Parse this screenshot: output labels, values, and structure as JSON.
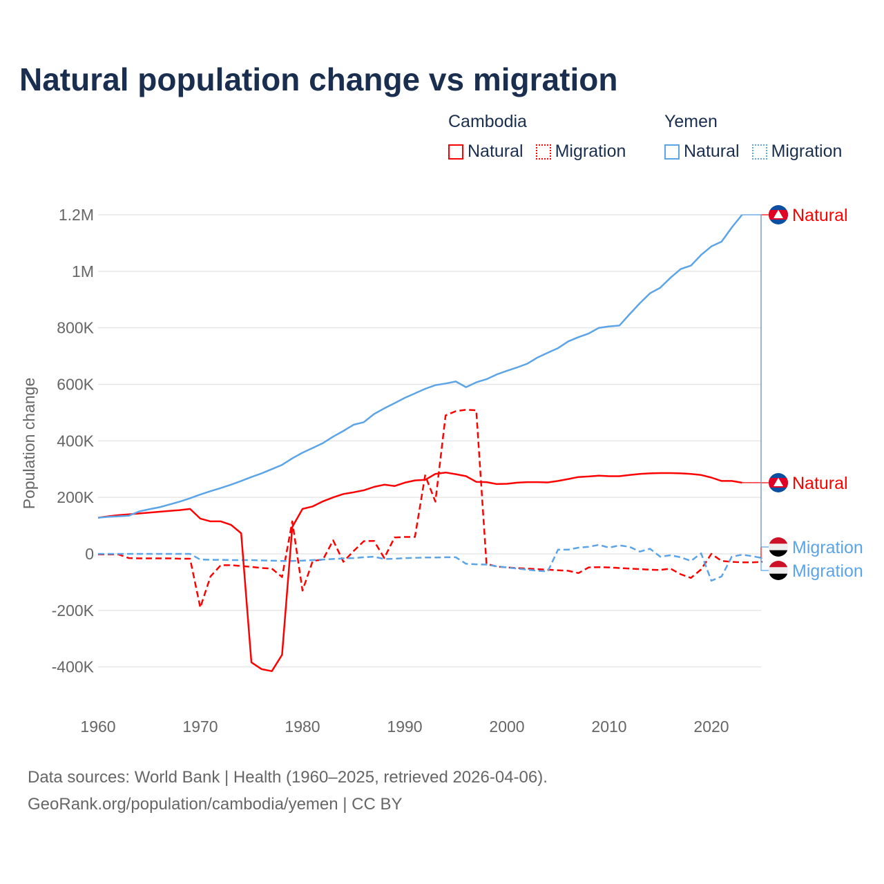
{
  "title": "Natural population change vs migration",
  "legend": {
    "groups": [
      {
        "name": "Cambodia",
        "items": [
          "Natural",
          "Migration"
        ],
        "color": "#ff0000"
      },
      {
        "name": "Yemen",
        "items": [
          "Natural",
          "Migration"
        ],
        "color": "#5ba4e8"
      }
    ]
  },
  "footer": {
    "line1": "Data sources: World Bank | Health (1960–2025, retrieved 2026-04-06).",
    "line2": "GeoRank.org/population/cambodia/yemen | CC BY"
  },
  "chart_data": {
    "type": "line",
    "title": "Natural population change vs migration",
    "xlabel": "",
    "ylabel": "Population change",
    "xlim": [
      1960,
      2025
    ],
    "ylim": [
      -500000,
      1300000
    ],
    "x_ticks": [
      "1960",
      "1970",
      "1980",
      "1990",
      "2000",
      "2010",
      "2020"
    ],
    "y_ticks": [
      {
        "value": 1200000,
        "label": "1.2M"
      },
      {
        "value": 1000000,
        "label": "1M"
      },
      {
        "value": 800000,
        "label": "800K"
      },
      {
        "value": 600000,
        "label": "600K"
      },
      {
        "value": 400000,
        "label": "400K"
      },
      {
        "value": 200000,
        "label": "200K"
      },
      {
        "value": 0,
        "label": "0"
      },
      {
        "value": -200000,
        "label": "-200K"
      },
      {
        "value": -400000,
        "label": "-400K"
      }
    ],
    "grid": true,
    "legend_position": "top-right",
    "series": [
      {
        "name": "Natural",
        "country": "Cambodia",
        "color": "#ff0000",
        "dash": false,
        "start_year": 1960,
        "values": [
          128000,
          133000,
          137000,
          140000,
          143000,
          146000,
          149000,
          152000,
          155000,
          159000,
          125000,
          115000,
          115000,
          103000,
          73000,
          -384000,
          -408000,
          -415000,
          -357000,
          95000,
          159000,
          168000,
          186000,
          200000,
          212000,
          218000,
          225000,
          237000,
          245000,
          240000,
          252000,
          260000,
          262000,
          283000,
          288000,
          282000,
          275000,
          255000,
          254000,
          247000,
          248000,
          252000,
          254000,
          254000,
          253000,
          258000,
          265000,
          272000,
          274000,
          277000,
          275000,
          275000,
          279000,
          283000,
          285000,
          286000,
          286000,
          285000,
          283000,
          279000,
          270000,
          258000,
          258000,
          252000
        ]
      },
      {
        "name": "Migration",
        "country": "Cambodia",
        "color": "#ff0000",
        "dash": true,
        "start_year": 1960,
        "values": [
          -2000,
          -2000,
          -2000,
          -15000,
          -16000,
          -16000,
          -16000,
          -16000,
          -17000,
          -17000,
          -190000,
          -80000,
          -40000,
          -40000,
          -43000,
          -46000,
          -50000,
          -52000,
          -82000,
          115000,
          -130000,
          -25000,
          -20000,
          48000,
          -28000,
          10000,
          45000,
          46000,
          -15000,
          58000,
          60000,
          60000,
          278000,
          185000,
          490000,
          505000,
          510000,
          508000,
          -35000,
          -45000,
          -48000,
          -50000,
          -52000,
          -54000,
          -56000,
          -58000,
          -60000,
          -68000,
          -48000,
          -47000,
          -48000,
          -50000,
          -52000,
          -54000,
          -56000,
          -57000,
          -52000,
          -72000,
          -85000,
          -55000,
          0,
          -25000,
          -28000,
          -30000,
          -30000,
          -28000
        ]
      },
      {
        "name": "Natural",
        "country": "Yemen",
        "color": "#5ba4e8",
        "dash": false,
        "start_year": 1960,
        "values": [
          128000,
          131000,
          133000,
          135000,
          150000,
          158000,
          165000,
          175000,
          185000,
          197000,
          210000,
          222000,
          233000,
          245000,
          258000,
          272000,
          285000,
          300000,
          315000,
          338000,
          358000,
          375000,
          392000,
          415000,
          435000,
          457000,
          466000,
          495000,
          515000,
          533000,
          552000,
          568000,
          584000,
          597000,
          603000,
          610000,
          590000,
          607000,
          618000,
          635000,
          648000,
          660000,
          673000,
          695000,
          712000,
          728000,
          752000,
          767000,
          780000,
          800000,
          805000,
          808000,
          848000,
          887000,
          922000,
          942000,
          977000,
          1008000,
          1020000,
          1058000,
          1088000,
          1105000,
          1155000,
          1200000
        ]
      },
      {
        "name": "Migration",
        "country": "Yemen",
        "color": "#5ba4e8",
        "dash": true,
        "start_year": 1960,
        "values": [
          0,
          0,
          0,
          0,
          0,
          0,
          0,
          0,
          0,
          0,
          -20000,
          -21000,
          -21000,
          -22000,
          -22000,
          -22000,
          -23000,
          -24000,
          -25000,
          -25000,
          -24000,
          -22000,
          -20000,
          -18000,
          -16000,
          -15000,
          -12000,
          -10000,
          -18000,
          -17000,
          -15000,
          -14000,
          -13000,
          -13000,
          -12000,
          -12000,
          -35000,
          -37000,
          -38000,
          -44000,
          -48000,
          -52000,
          -56000,
          -60000,
          -62000,
          15000,
          15000,
          22000,
          25000,
          32000,
          22000,
          30000,
          25000,
          8000,
          18000,
          -10000,
          -5000,
          -12000,
          -25000,
          2000,
          -95000,
          -80000,
          -10000,
          -3000,
          -8000,
          -15000
        ]
      }
    ],
    "end_labels": [
      "Natural",
      "Natural",
      "Migration",
      "Migration"
    ]
  }
}
